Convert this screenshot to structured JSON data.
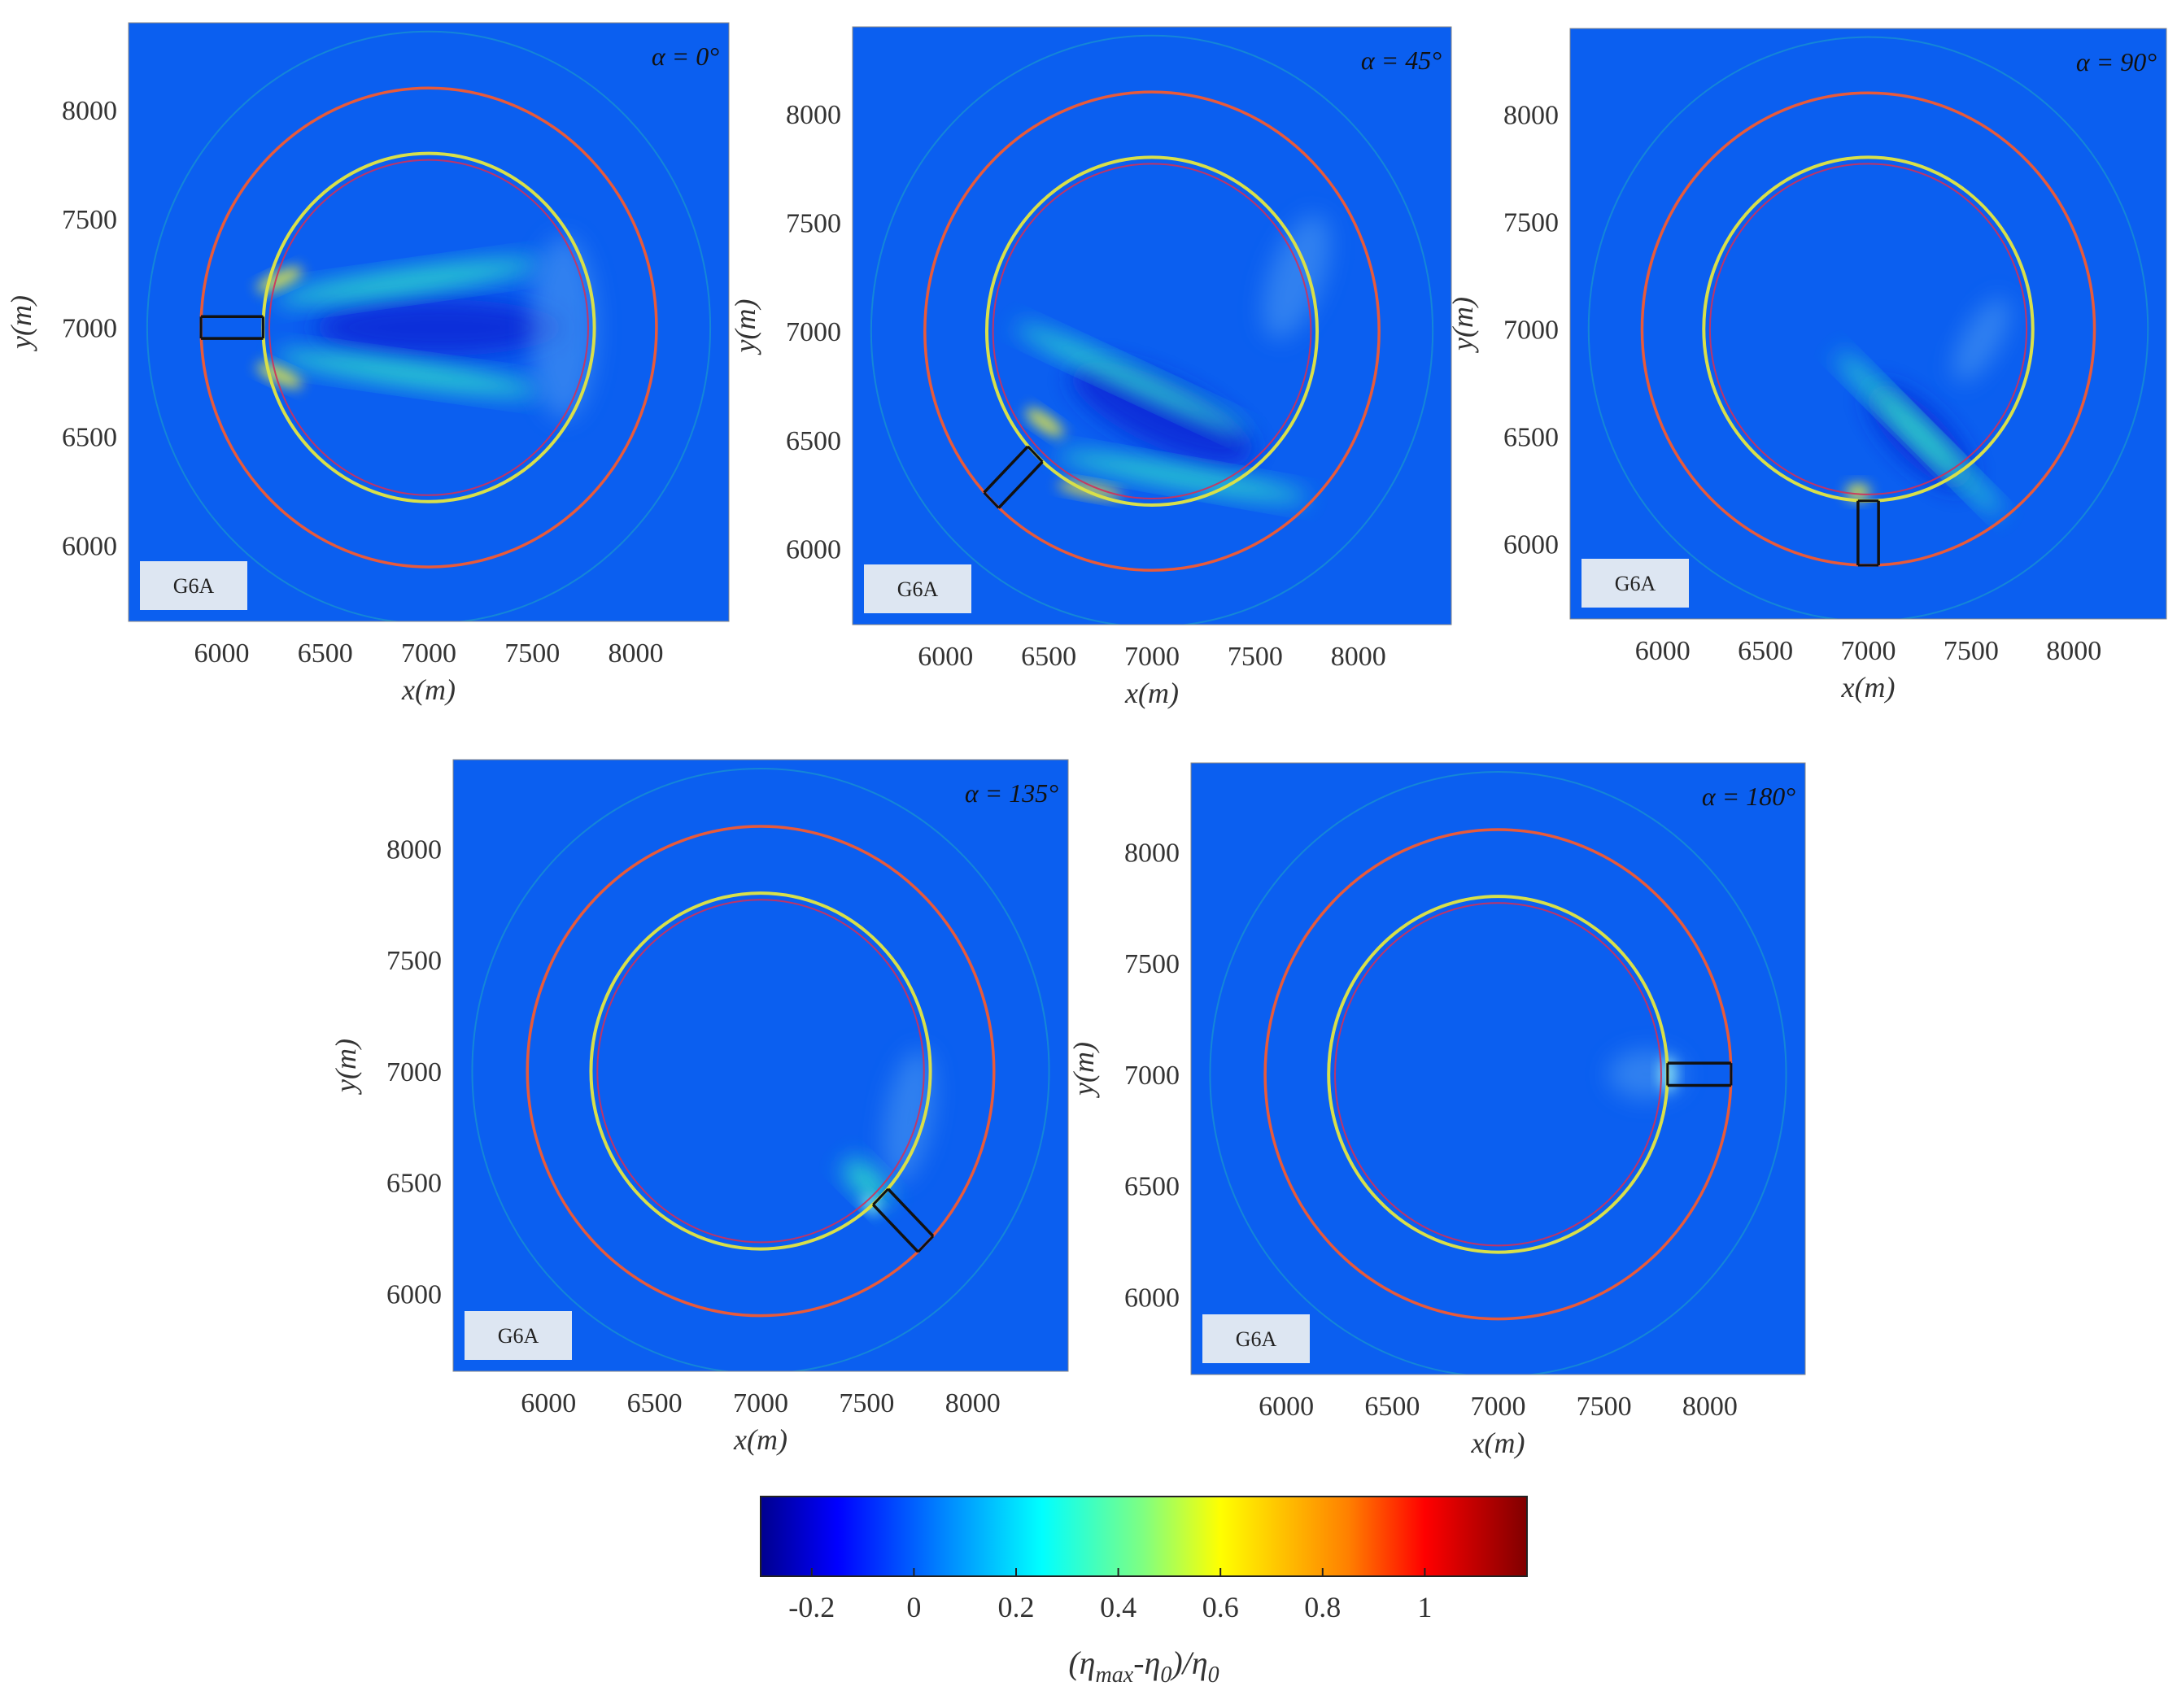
{
  "chart_data": [
    {
      "type": "heatmap",
      "annotation": "α = 0°",
      "label_box": "G6A",
      "xlabel": "x(m)",
      "ylabel": "y(m)",
      "xlim": [
        5550,
        8450
      ],
      "ylim": [
        5650,
        8400
      ],
      "xticks": [
        6000,
        6500,
        7000,
        7500,
        8000
      ],
      "yticks": [
        6000,
        6500,
        7000,
        7500,
        8000
      ],
      "center": [
        7000,
        7000
      ],
      "ring_radii": {
        "outer_faint": 1360,
        "orange": 1100,
        "yellow": 800,
        "inner_red": 770
      },
      "structure_angle_deg": 180,
      "field": [
        {
          "kind": "low",
          "x": 7050,
          "y": 7000,
          "rx": 600,
          "ry": 130,
          "rot": 0,
          "color": "#0a2ad8"
        },
        {
          "kind": "high",
          "x": 6900,
          "y": 7210,
          "rx": 650,
          "ry": 55,
          "rot": -8,
          "color": "#33e6c8"
        },
        {
          "kind": "high",
          "x": 6900,
          "y": 6790,
          "rx": 650,
          "ry": 55,
          "rot": 8,
          "color": "#33e6c8"
        },
        {
          "kind": "peak",
          "x": 6280,
          "y": 7220,
          "rx": 120,
          "ry": 35,
          "rot": -25,
          "color": "#f2f23a"
        },
        {
          "kind": "peak",
          "x": 6280,
          "y": 6780,
          "rx": 120,
          "ry": 35,
          "rot": 25,
          "color": "#f2f23a"
        },
        {
          "kind": "shadow",
          "x": 7650,
          "y": 7000,
          "rx": 160,
          "ry": 420,
          "rot": 0,
          "color": "#4f9cf0"
        }
      ]
    },
    {
      "type": "heatmap",
      "annotation": "α = 45°",
      "label_box": "G6A",
      "xlabel": "x(m)",
      "ylabel": "y(m)",
      "xlim": [
        5550,
        8450
      ],
      "ylim": [
        5650,
        8400
      ],
      "xticks": [
        6000,
        6500,
        7000,
        7500,
        8000
      ],
      "yticks": [
        6000,
        6500,
        7000,
        7500,
        8000
      ],
      "center": [
        7000,
        7000
      ],
      "ring_radii": {
        "outer_faint": 1360,
        "orange": 1100,
        "yellow": 800,
        "inner_red": 770
      },
      "structure_angle_deg": 225,
      "field": [
        {
          "kind": "low",
          "x": 7050,
          "y": 6620,
          "rx": 480,
          "ry": 150,
          "rot": 25,
          "color": "#0a2ad8"
        },
        {
          "kind": "high",
          "x": 6900,
          "y": 6780,
          "rx": 620,
          "ry": 50,
          "rot": 25,
          "color": "#33e6c8"
        },
        {
          "kind": "high",
          "x": 7150,
          "y": 6330,
          "rx": 620,
          "ry": 50,
          "rot": 10,
          "color": "#33e6c8"
        },
        {
          "kind": "peak",
          "x": 6480,
          "y": 6580,
          "rx": 110,
          "ry": 35,
          "rot": 35,
          "color": "#f2f23a"
        },
        {
          "kind": "peak",
          "x": 6700,
          "y": 6270,
          "rx": 160,
          "ry": 30,
          "rot": 10,
          "color": "#e8e040"
        },
        {
          "kind": "shadow",
          "x": 7700,
          "y": 7250,
          "rx": 130,
          "ry": 300,
          "rot": 20,
          "color": "#4f9cf0"
        }
      ]
    },
    {
      "type": "heatmap",
      "annotation": "α = 90°",
      "label_box": "G6A",
      "xlabel": "x(m)",
      "ylabel": "y(m)",
      "xlim": [
        5550,
        8450
      ],
      "ylim": [
        5650,
        8400
      ],
      "xticks": [
        6000,
        6500,
        7000,
        7500,
        8000
      ],
      "yticks": [
        6000,
        6500,
        7000,
        7500,
        8000
      ],
      "center": [
        7000,
        7000
      ],
      "ring_radii": {
        "outer_faint": 1360,
        "orange": 1100,
        "yellow": 800,
        "inner_red": 770
      },
      "structure_angle_deg": 270,
      "field": [
        {
          "kind": "low",
          "x": 7250,
          "y": 6500,
          "rx": 330,
          "ry": 120,
          "rot": 45,
          "color": "#0a2ad8"
        },
        {
          "kind": "high",
          "x": 7150,
          "y": 6600,
          "rx": 430,
          "ry": 45,
          "rot": 45,
          "color": "#33e6c8"
        },
        {
          "kind": "high",
          "x": 7350,
          "y": 6420,
          "rx": 430,
          "ry": 40,
          "rot": 45,
          "color": "#33e6c8"
        },
        {
          "kind": "peak",
          "x": 6950,
          "y": 6240,
          "rx": 60,
          "ry": 40,
          "rot": 0,
          "color": "#f2f23a"
        },
        {
          "kind": "shadow",
          "x": 7550,
          "y": 6950,
          "rx": 90,
          "ry": 220,
          "rot": 30,
          "color": "#4f9cf0"
        }
      ]
    },
    {
      "type": "heatmap",
      "annotation": "α = 135°",
      "label_box": "G6A",
      "xlabel": "x(m)",
      "ylabel": "y(m)",
      "xlim": [
        5550,
        8450
      ],
      "ylim": [
        5650,
        8400
      ],
      "xticks": [
        6000,
        6500,
        7000,
        7500,
        8000
      ],
      "yticks": [
        6000,
        6500,
        7000,
        7500,
        8000
      ],
      "center": [
        7000,
        7000
      ],
      "ring_radii": {
        "outer_faint": 1360,
        "orange": 1100,
        "yellow": 800,
        "inner_red": 770
      },
      "structure_angle_deg": 315,
      "field": [
        {
          "kind": "high",
          "x": 7500,
          "y": 6500,
          "rx": 140,
          "ry": 60,
          "rot": 45,
          "color": "#33e6c8"
        },
        {
          "kind": "peak",
          "x": 7520,
          "y": 6400,
          "rx": 50,
          "ry": 30,
          "rot": 45,
          "color": "#8ff2e6"
        },
        {
          "kind": "shadow",
          "x": 7700,
          "y": 6800,
          "rx": 110,
          "ry": 300,
          "rot": 10,
          "color": "#4f9cf0"
        }
      ]
    },
    {
      "type": "heatmap",
      "annotation": "α = 180°",
      "label_box": "G6A",
      "xlabel": "x(m)",
      "ylabel": "y(m)",
      "xlim": [
        5550,
        8450
      ],
      "ylim": [
        5650,
        8400
      ],
      "xticks": [
        6000,
        6500,
        7000,
        7500,
        8000
      ],
      "yticks": [
        6000,
        6500,
        7000,
        7500,
        8000
      ],
      "center": [
        7000,
        7000
      ],
      "ring_radii": {
        "outer_faint": 1360,
        "orange": 1100,
        "yellow": 800,
        "inner_red": 770
      },
      "structure_angle_deg": 0,
      "field": [
        {
          "kind": "shadow",
          "x": 7700,
          "y": 7000,
          "rx": 180,
          "ry": 110,
          "rot": 0,
          "color": "#4f9cf0"
        },
        {
          "kind": "peak",
          "x": 7800,
          "y": 7000,
          "rx": 40,
          "ry": 80,
          "rot": 0,
          "color": "#8fe8f2"
        }
      ]
    }
  ],
  "colorbar": {
    "label": "(η",
    "label_sub1": "max",
    "label_mid": "-η",
    "label_sub2": "0",
    "label_end": ")/η",
    "label_sub3": "0",
    "range": [
      -0.3,
      1.2
    ],
    "ticks": [
      -0.2,
      0,
      0.2,
      0.4,
      0.6,
      0.8,
      1
    ],
    "tick_labels": [
      "-0.2",
      "0",
      "0.2",
      "0.4",
      "0.6",
      "0.8",
      "1"
    ],
    "stops": [
      {
        "v": -0.3,
        "color": "#00008f"
      },
      {
        "v": -0.15,
        "color": "#0000ff"
      },
      {
        "v": 0.05,
        "color": "#0080ff"
      },
      {
        "v": 0.25,
        "color": "#00ffff"
      },
      {
        "v": 0.45,
        "color": "#80ff80"
      },
      {
        "v": 0.6,
        "color": "#ffff00"
      },
      {
        "v": 0.85,
        "color": "#ff8000"
      },
      {
        "v": 1.0,
        "color": "#ff0000"
      },
      {
        "v": 1.2,
        "color": "#800000"
      }
    ]
  },
  "colors": {
    "background_field": "#0b5ff0",
    "outer_faint_ring": "#1aa0c8",
    "orange_ring": "#e85a3a",
    "yellow_ring": "#d8e04a",
    "inner_red_ring": "#d0305a",
    "structure": "#111111",
    "label_box_fill": "#dde6f2"
  }
}
